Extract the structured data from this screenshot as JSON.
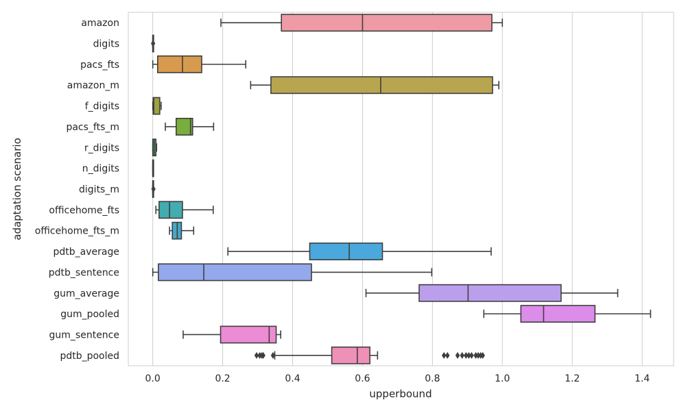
{
  "chart_data": {
    "type": "boxplot",
    "orientation": "horizontal",
    "title": "",
    "xlabel": "upperbound",
    "ylabel": "adaptation scenario",
    "xlim": [
      -0.07,
      1.49
    ],
    "xticks": [
      0.0,
      0.2,
      0.4,
      0.6,
      0.8,
      1.0,
      1.2,
      1.4
    ],
    "xtick_labels": [
      "0.0",
      "0.2",
      "0.4",
      "0.6",
      "0.8",
      "1.0",
      "1.2",
      "1.4"
    ],
    "grid": "vertical",
    "categories": [
      "amazon",
      "digits",
      "pacs_fts",
      "amazon_m",
      "f_digits",
      "pacs_fts_m",
      "r_digits",
      "n_digits",
      "digits_m",
      "officehome_fts",
      "officehome_fts_m",
      "pdtb_average",
      "pdtb_sentence",
      "gum_average",
      "gum_pooled",
      "gum_sentence",
      "pdtb_pooled"
    ],
    "boxes": [
      {
        "category": "amazon",
        "color": "#ee9ba5",
        "whislo": 0.195,
        "q1": 0.368,
        "median": 0.6,
        "q3": 0.97,
        "whishi": 1.0,
        "fliers": []
      },
      {
        "category": "digits",
        "color": "#e79f8e",
        "whislo": 0.0,
        "q1": 0.0,
        "median": 0.0,
        "q3": 0.0,
        "whishi": 0.0,
        "fliers": [
          0.001
        ]
      },
      {
        "category": "pacs_fts",
        "color": "#d89a4e",
        "whislo": 0.0,
        "q1": 0.014,
        "median": 0.085,
        "q3": 0.14,
        "whishi": 0.266,
        "fliers": []
      },
      {
        "category": "amazon_m",
        "color": "#b8a54f",
        "whislo": 0.28,
        "q1": 0.338,
        "median": 0.652,
        "q3": 0.972,
        "whishi": 0.99,
        "fliers": []
      },
      {
        "category": "f_digits",
        "color": "#9ea23d",
        "whislo": 0.0,
        "q1": 0.001,
        "median": 0.003,
        "q3": 0.02,
        "whishi": 0.024,
        "fliers": []
      },
      {
        "category": "pacs_fts_m",
        "color": "#79ad3e",
        "whislo": 0.036,
        "q1": 0.067,
        "median": 0.108,
        "q3": 0.114,
        "whishi": 0.174,
        "fliers": []
      },
      {
        "category": "r_digits",
        "color": "#4daa5e",
        "whislo": 0.0,
        "q1": 0.0,
        "median": 0.004,
        "q3": 0.009,
        "whishi": 0.011,
        "fliers": []
      },
      {
        "category": "n_digits",
        "color": "#48b092",
        "whislo": 0.0,
        "q1": 0.0,
        "median": 0.0,
        "q3": 0.001,
        "whishi": 0.001,
        "fliers": []
      },
      {
        "category": "digits_m",
        "color": "#45b0a5",
        "whislo": 0.0,
        "q1": 0.0,
        "median": 0.0,
        "q3": 0.0,
        "whishi": 0.0,
        "fliers": [
          0.002
        ]
      },
      {
        "category": "officehome_fts",
        "color": "#42acb1",
        "whislo": 0.009,
        "q1": 0.018,
        "median": 0.048,
        "q3": 0.085,
        "whishi": 0.173,
        "fliers": []
      },
      {
        "category": "officehome_fts_m",
        "color": "#45a8c7",
        "whislo": 0.048,
        "q1": 0.056,
        "median": 0.07,
        "q3": 0.082,
        "whishi": 0.117,
        "fliers": []
      },
      {
        "category": "pdtb_average",
        "color": "#4aa8dc",
        "whislo": 0.215,
        "q1": 0.449,
        "median": 0.562,
        "q3": 0.657,
        "whishi": 0.968,
        "fliers": []
      },
      {
        "category": "pdtb_sentence",
        "color": "#94a8ec",
        "whislo": 0.0,
        "q1": 0.016,
        "median": 0.146,
        "q3": 0.454,
        "whishi": 0.798,
        "fliers": []
      },
      {
        "category": "gum_average",
        "color": "#bb9fed",
        "whislo": 0.61,
        "q1": 0.762,
        "median": 0.902,
        "q3": 1.168,
        "whishi": 1.33,
        "fliers": []
      },
      {
        "category": "gum_pooled",
        "color": "#dc8ce9",
        "whislo": 0.947,
        "q1": 1.053,
        "median": 1.118,
        "q3": 1.265,
        "whishi": 1.424,
        "fliers": []
      },
      {
        "category": "gum_sentence",
        "color": "#eb8cd4",
        "whislo": 0.087,
        "q1": 0.194,
        "median": 0.333,
        "q3": 0.353,
        "whishi": 0.366,
        "fliers": []
      },
      {
        "category": "pdtb_pooled",
        "color": "#ee90b8",
        "whislo": 0.349,
        "q1": 0.512,
        "median": 0.585,
        "q3": 0.621,
        "whishi": 0.643,
        "fliers": [
          0.297,
          0.306,
          0.312,
          0.316,
          0.344,
          0.833,
          0.843,
          0.872,
          0.885,
          0.896,
          0.904,
          0.912,
          0.924,
          0.931,
          0.938,
          0.944
        ]
      }
    ]
  }
}
